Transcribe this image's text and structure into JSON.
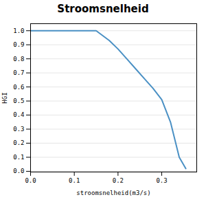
{
  "chart_data": {
    "type": "line",
    "title": "Stroomsnelheid",
    "x_label": "stroomsnelheid(m3/s)",
    "y_label": "HGI",
    "x": [
      0.0,
      0.05,
      0.1,
      0.15,
      0.18,
      0.2,
      0.22,
      0.24,
      0.26,
      0.28,
      0.3,
      0.32,
      0.34,
      0.355
    ],
    "values": [
      1.0,
      1.0,
      1.0,
      1.0,
      0.93,
      0.87,
      0.8,
      0.73,
      0.66,
      0.59,
      0.51,
      0.35,
      0.1,
      0.02
    ],
    "color": "#4a90c4",
    "xlim": [
      0.0,
      0.38
    ],
    "ylim": [
      -0.005,
      1.05
    ],
    "xticks": [
      {
        "value": 0.0,
        "label": "0.0"
      },
      0.1,
      0.2,
      0.3
    ],
    "yticks": [
      {
        "value": 0.0,
        "label": "0.0"
      },
      0.1,
      0.2,
      0.3,
      0.4,
      0.5,
      0.6,
      0.7,
      0.8,
      0.9,
      {
        "value": 1.0,
        "label": "1.0"
      }
    ],
    "grid": true
  }
}
